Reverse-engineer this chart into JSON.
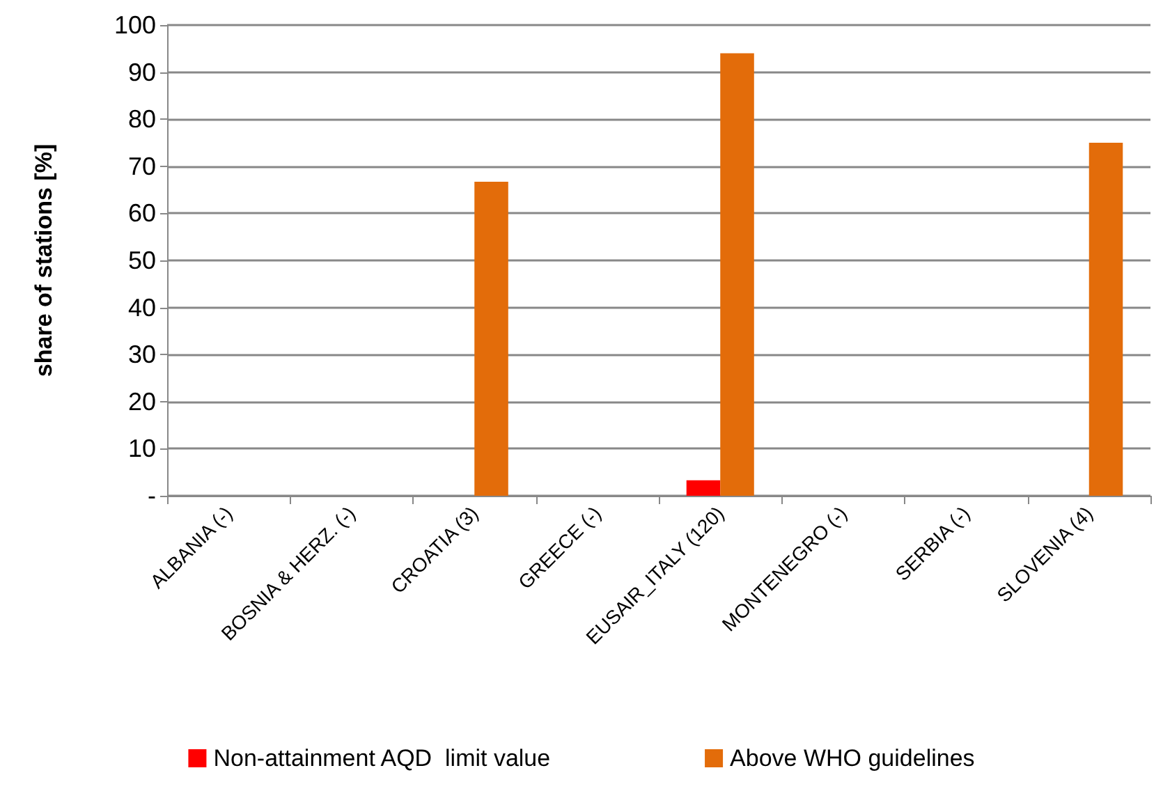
{
  "chart_data": {
    "type": "bar",
    "ylabel": "share of stations [%]",
    "categories": [
      "ALBANIA (-)",
      "BOSNIA & HERZ. (-)",
      "CROATIA (3)",
      "GREECE (-)",
      "EUSAIR_ITALY (120)",
      "MONTENEGRO (-)",
      "SERBIA (-)",
      "SLOVENIA (4)"
    ],
    "series": [
      {
        "name": "Non-attainment AQD  limit value",
        "color": "#ff0000",
        "values": [
          0,
          0,
          0,
          0,
          3.3,
          0,
          0,
          0
        ]
      },
      {
        "name": "Above WHO guidelines",
        "color": "#e36c0a",
        "values": [
          0,
          0,
          66.7,
          0,
          94,
          0,
          0,
          75
        ]
      }
    ],
    "ylim": [
      0,
      100
    ],
    "yticks": [
      {
        "value": 0,
        "label": "-"
      },
      10,
      20,
      30,
      40,
      50,
      60,
      70,
      80,
      90,
      100
    ],
    "grid": "y",
    "legend": "bottom"
  }
}
